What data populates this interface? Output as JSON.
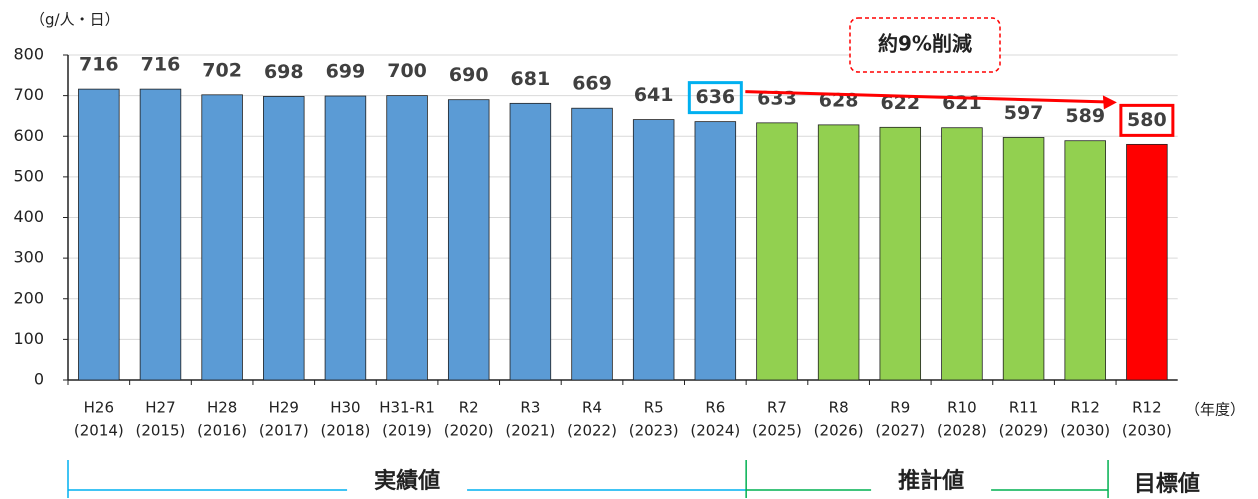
{
  "chart_data": {
    "type": "bar",
    "y_unit": "（g/人・日）",
    "x_unit": "（年度）",
    "categories": [
      [
        "H26",
        "(2014)"
      ],
      [
        "H27",
        "(2015)"
      ],
      [
        "H28",
        "(2016)"
      ],
      [
        "H29",
        "(2017)"
      ],
      [
        "H30",
        "(2018)"
      ],
      [
        "H31-R1",
        "(2019)"
      ],
      [
        "R2",
        "(2020)"
      ],
      [
        "R3",
        "(2021)"
      ],
      [
        "R4",
        "(2022)"
      ],
      [
        "R5",
        "(2023)"
      ],
      [
        "R6",
        "(2024)"
      ],
      [
        "R7",
        "(2025)"
      ],
      [
        "R8",
        "(2026)"
      ],
      [
        "R9",
        "(2027)"
      ],
      [
        "R10",
        "(2028)"
      ],
      [
        "R11",
        "(2029)"
      ],
      [
        "R12",
        "(2030)"
      ],
      [
        "R12",
        "(2030)"
      ]
    ],
    "values": [
      716,
      716,
      702,
      698,
      699,
      700,
      690,
      681,
      669,
      641,
      636,
      633,
      628,
      622,
      621,
      597,
      589,
      580
    ],
    "colors": [
      "#5b9bd5",
      "#5b9bd5",
      "#5b9bd5",
      "#5b9bd5",
      "#5b9bd5",
      "#5b9bd5",
      "#5b9bd5",
      "#5b9bd5",
      "#5b9bd5",
      "#5b9bd5",
      "#5b9bd5",
      "#92d050",
      "#92d050",
      "#92d050",
      "#92d050",
      "#92d050",
      "#92d050",
      "#ff0000"
    ],
    "ylim": [
      0,
      800
    ],
    "yticks": [
      0,
      100,
      200,
      300,
      400,
      500,
      600,
      700,
      800
    ],
    "grid": true,
    "highlight_boxes": [
      {
        "index": 10,
        "color": "#00b0f0"
      },
      {
        "index": 17,
        "color": "#ff0000"
      }
    ],
    "annotation": {
      "text": "約9%削減",
      "color": "#ff0000",
      "from": 10,
      "to": 17
    },
    "groups": [
      {
        "label": "実績値",
        "start": 0,
        "end": 10,
        "color": "#00b0f0"
      },
      {
        "label": "推計値",
        "start": 11,
        "end": 16,
        "color": "#00b050"
      },
      {
        "label": "目標値",
        "start": 17,
        "end": 17,
        "color": "#ff0000"
      }
    ]
  }
}
